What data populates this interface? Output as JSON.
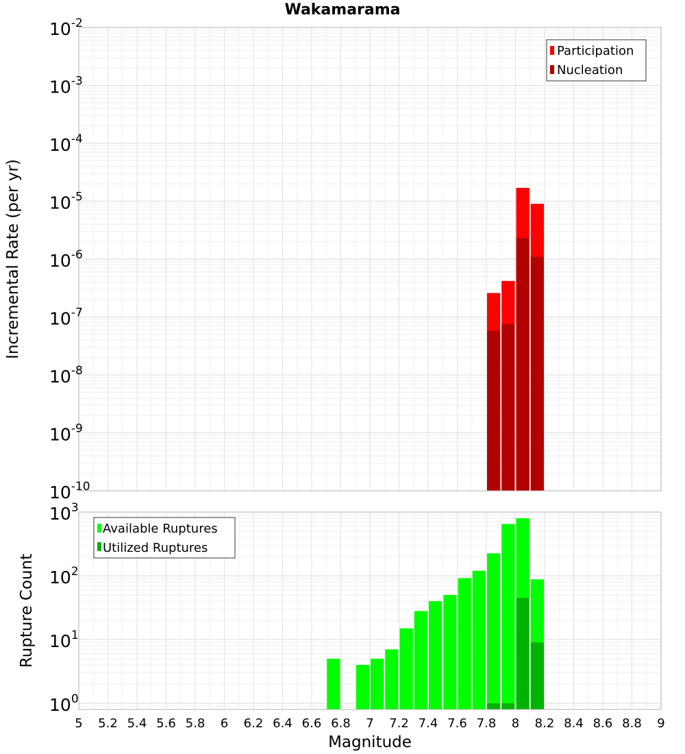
{
  "title": "Wakamarama",
  "chart_data": [
    {
      "type": "bar",
      "name": "rate-panel",
      "ylabel": "Incremental Rate (per yr)",
      "yscale": "log",
      "ylim": [
        1e-10,
        0.01
      ],
      "ytick_exponents": [
        "-10",
        "-9",
        "-8",
        "-7",
        "-6",
        "-5",
        "-4",
        "-3",
        "-2"
      ],
      "xlim": [
        5,
        9
      ],
      "bin_width": 0.1,
      "legend": {
        "position": "top-right",
        "entries": [
          "Participation",
          "Nucleation"
        ]
      },
      "series": [
        {
          "name": "Participation",
          "color": "#ff0000",
          "x": [
            7.85,
            7.95,
            8.05,
            8.15
          ],
          "values": [
            2.6e-07,
            4.2e-07,
            1.7e-05,
            9e-06
          ]
        },
        {
          "name": "Nucleation",
          "color": "#b30000",
          "x": [
            7.85,
            7.95,
            8.05,
            8.15
          ],
          "values": [
            5.8e-08,
            7.5e-08,
            2.3e-06,
            1.1e-06
          ]
        }
      ]
    },
    {
      "type": "bar",
      "name": "count-panel",
      "ylabel": "Rupture Count",
      "xlabel": "Magnitude",
      "yscale": "log",
      "ylim": [
        0.8,
        1000
      ],
      "ytick_exponents": [
        "0",
        "1",
        "2",
        "3"
      ],
      "xlim": [
        5,
        9
      ],
      "xticks": [
        "5",
        "5.2",
        "5.4",
        "5.6",
        "5.8",
        "6",
        "6.2",
        "6.4",
        "6.6",
        "6.8",
        "7",
        "7.2",
        "7.4",
        "7.6",
        "7.8",
        "8",
        "8.2",
        "8.4",
        "8.6",
        "8.8",
        "9"
      ],
      "bin_width": 0.1,
      "legend": {
        "position": "top-left",
        "entries": [
          "Available Ruptures",
          "Utilized Ruptures"
        ]
      },
      "series": [
        {
          "name": "Available Ruptures",
          "color": "#00ff00",
          "x": [
            6.75,
            6.95,
            7.05,
            7.15,
            7.25,
            7.35,
            7.45,
            7.55,
            7.65,
            7.75,
            7.85,
            7.95,
            8.05,
            8.15
          ],
          "values": [
            5,
            4,
            5,
            7,
            15,
            28,
            40,
            50,
            92,
            120,
            225,
            650,
            800,
            88
          ]
        },
        {
          "name": "Utilized Ruptures",
          "color": "#00b300",
          "x": [
            7.85,
            7.95,
            8.05,
            8.15
          ],
          "values": [
            1,
            1,
            45,
            9
          ]
        }
      ]
    }
  ]
}
